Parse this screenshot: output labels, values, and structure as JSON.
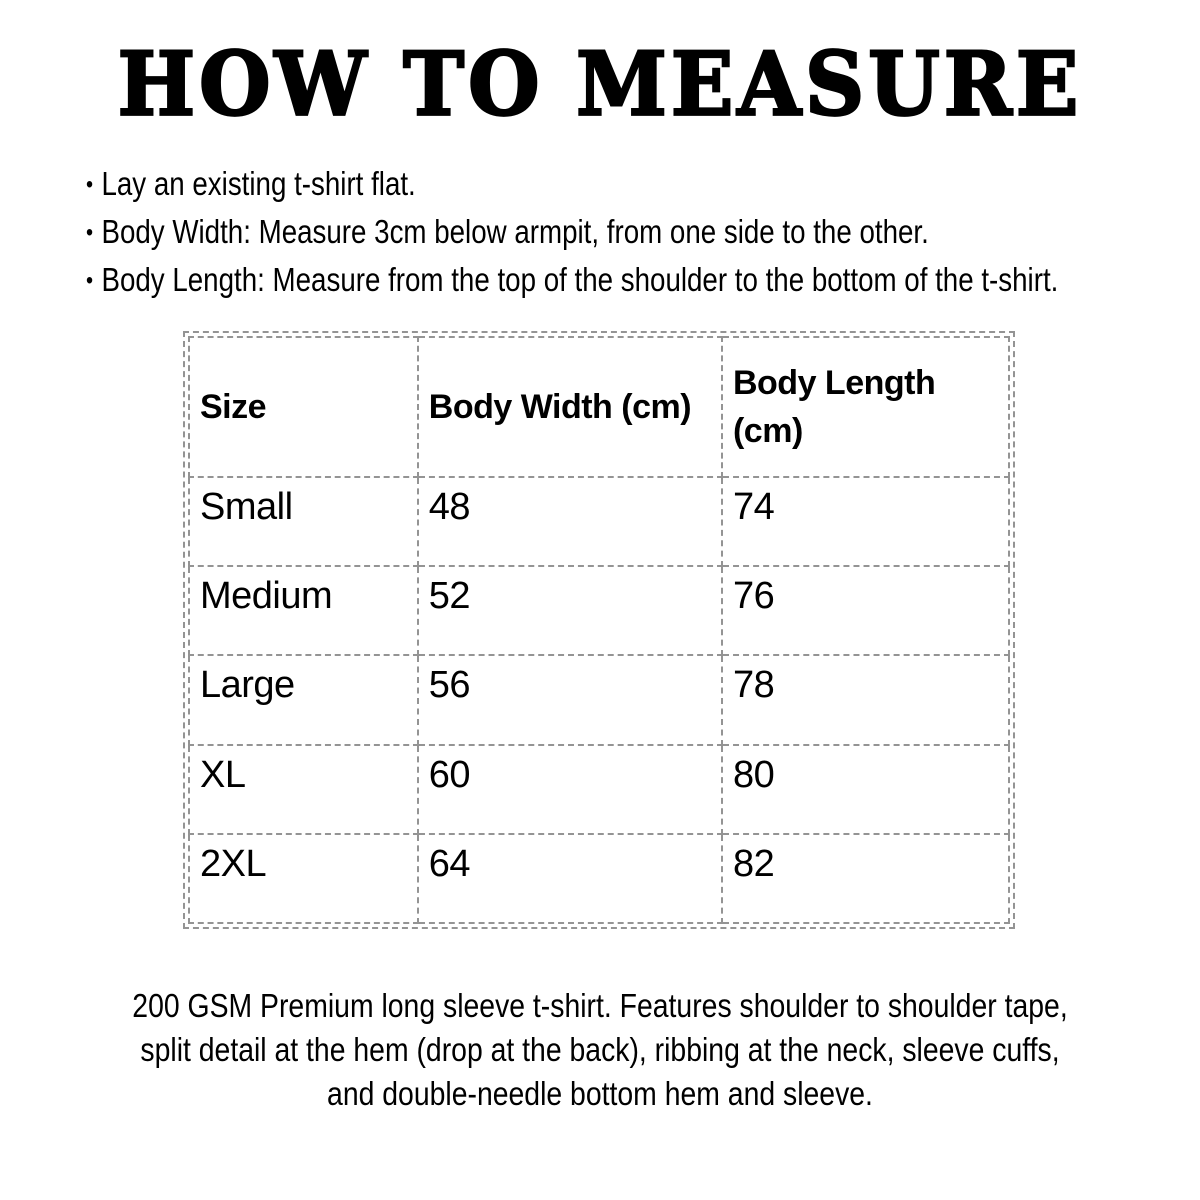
{
  "page": {
    "title": "HOW TO MEASURE"
  },
  "instructions": {
    "bullet_char": "•",
    "items": [
      "Lay an existing t-shirt flat.",
      "Body Width: Measure 3cm below armpit, from one side to the other.",
      "Body Length: Measure from the top of the shoulder to the bottom of the t-shirt."
    ]
  },
  "size_table": {
    "columns": [
      "Size",
      "Body Width (cm)",
      "Body Length (cm)"
    ],
    "rows": [
      {
        "size": "Small",
        "body_width_cm": "48",
        "body_length_cm": "74"
      },
      {
        "size": "Medium",
        "body_width_cm": "52",
        "body_length_cm": "76"
      },
      {
        "size": "Large",
        "body_width_cm": "56",
        "body_length_cm": "78"
      },
      {
        "size": "XL",
        "body_width_cm": "60",
        "body_length_cm": "80"
      },
      {
        "size": "2XL",
        "body_width_cm": "64",
        "body_length_cm": "82"
      }
    ]
  },
  "footer": {
    "lines": [
      "200 GSM Premium long sleeve t-shirt. Features shoulder to shoulder tape,",
      "split detail at the hem (drop at the back), ribbing at the neck, sleeve cuffs,",
      "and double-needle bottom hem and sleeve."
    ]
  },
  "colors": {
    "text": "#000000",
    "table_border": "#949494",
    "background": "#ffffff"
  }
}
